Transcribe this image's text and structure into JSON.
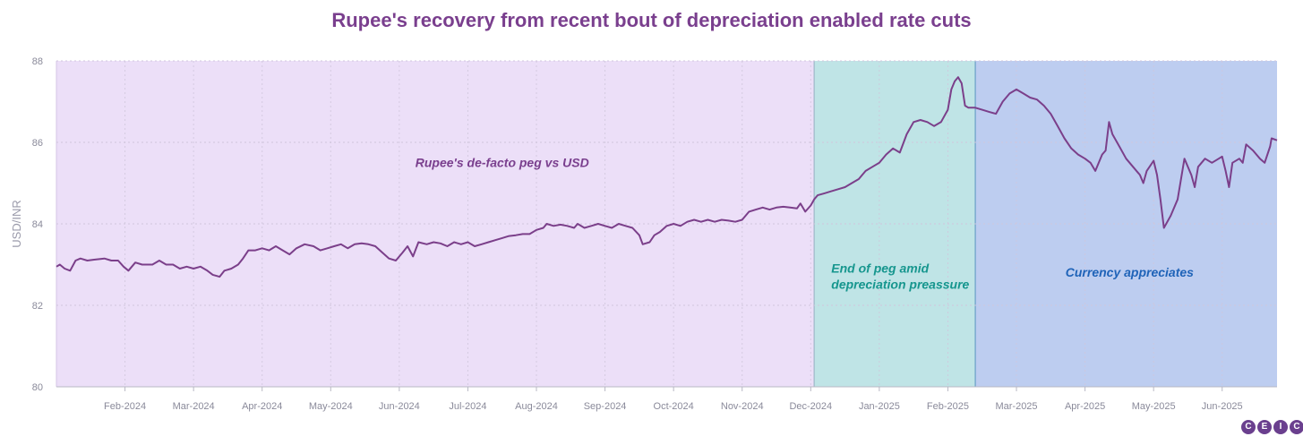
{
  "title": "Rupee's recovery from recent bout of depreciation enabled rate cuts",
  "logo": [
    "C",
    "E",
    "I",
    "C"
  ],
  "chart_data": {
    "type": "line",
    "title": "Rupee's recovery from recent bout of depreciation enabled rate cuts",
    "ylabel": "USD/INR",
    "xlabel": "",
    "ylim": [
      80,
      88
    ],
    "yticks": [
      80,
      82,
      84,
      86,
      88
    ],
    "xlim": [
      0,
      17.8
    ],
    "xticks": [
      {
        "x": 1,
        "label": "Feb-2024"
      },
      {
        "x": 2,
        "label": "Mar-2024"
      },
      {
        "x": 3,
        "label": "Apr-2024"
      },
      {
        "x": 4,
        "label": "May-2024"
      },
      {
        "x": 5,
        "label": "Jun-2024"
      },
      {
        "x": 6,
        "label": "Jul-2024"
      },
      {
        "x": 7,
        "label": "Aug-2024"
      },
      {
        "x": 8,
        "label": "Sep-2024"
      },
      {
        "x": 9,
        "label": "Oct-2024"
      },
      {
        "x": 10,
        "label": "Nov-2024"
      },
      {
        "x": 11,
        "label": "Dec-2024"
      },
      {
        "x": 12,
        "label": "Jan-2025"
      },
      {
        "x": 13,
        "label": "Feb-2025"
      },
      {
        "x": 14,
        "label": "Mar-2025"
      },
      {
        "x": 15,
        "label": "Apr-2025"
      },
      {
        "x": 16,
        "label": "May-2025"
      },
      {
        "x": 17,
        "label": "Jun-2025"
      }
    ],
    "grid": true,
    "regions": [
      {
        "from": 0,
        "to": 11.05,
        "label": "Rupee's de-facto peg vs USD",
        "color": "#ecdff8",
        "label_color": "#7a3f8e",
        "label_at": [
          6.5,
          85.4
        ]
      },
      {
        "from": 11.05,
        "to": 13.4,
        "label": "End of peg amid\ndepreciation preassure",
        "color": "#bfe4e6",
        "label_color": "#16968e",
        "label_at": [
          11.3,
          82.8
        ]
      },
      {
        "from": 13.4,
        "to": 17.8,
        "label": "Currency appreciates",
        "color": "#bdcdf0",
        "label_color": "#1f63b8",
        "label_at": [
          15.65,
          82.7
        ]
      }
    ],
    "series": [
      {
        "color": "#7b3f8a",
        "points": [
          [
            0,
            82.95
          ],
          [
            0.05,
            83.0
          ],
          [
            0.12,
            82.9
          ],
          [
            0.2,
            82.85
          ],
          [
            0.28,
            83.1
          ],
          [
            0.35,
            83.15
          ],
          [
            0.45,
            83.1
          ],
          [
            0.55,
            83.12
          ],
          [
            0.7,
            83.15
          ],
          [
            0.8,
            83.1
          ],
          [
            0.9,
            83.1
          ],
          [
            0.98,
            82.95
          ],
          [
            1.05,
            82.85
          ],
          [
            1.15,
            83.05
          ],
          [
            1.25,
            83.0
          ],
          [
            1.4,
            83.0
          ],
          [
            1.5,
            83.1
          ],
          [
            1.6,
            83.0
          ],
          [
            1.7,
            83.0
          ],
          [
            1.8,
            82.9
          ],
          [
            1.9,
            82.95
          ],
          [
            2.0,
            82.9
          ],
          [
            2.1,
            82.95
          ],
          [
            2.2,
            82.85
          ],
          [
            2.28,
            82.75
          ],
          [
            2.38,
            82.7
          ],
          [
            2.45,
            82.85
          ],
          [
            2.55,
            82.9
          ],
          [
            2.65,
            83.0
          ],
          [
            2.72,
            83.15
          ],
          [
            2.8,
            83.35
          ],
          [
            2.9,
            83.35
          ],
          [
            3.0,
            83.4
          ],
          [
            3.1,
            83.35
          ],
          [
            3.2,
            83.45
          ],
          [
            3.3,
            83.35
          ],
          [
            3.4,
            83.25
          ],
          [
            3.5,
            83.4
          ],
          [
            3.62,
            83.5
          ],
          [
            3.75,
            83.45
          ],
          [
            3.85,
            83.35
          ],
          [
            3.95,
            83.4
          ],
          [
            4.05,
            83.45
          ],
          [
            4.15,
            83.5
          ],
          [
            4.25,
            83.4
          ],
          [
            4.35,
            83.5
          ],
          [
            4.45,
            83.52
          ],
          [
            4.55,
            83.5
          ],
          [
            4.65,
            83.45
          ],
          [
            4.75,
            83.3
          ],
          [
            4.85,
            83.15
          ],
          [
            4.95,
            83.1
          ],
          [
            5.05,
            83.3
          ],
          [
            5.12,
            83.45
          ],
          [
            5.2,
            83.2
          ],
          [
            5.28,
            83.55
          ],
          [
            5.4,
            83.5
          ],
          [
            5.5,
            83.55
          ],
          [
            5.6,
            83.52
          ],
          [
            5.7,
            83.45
          ],
          [
            5.8,
            83.55
          ],
          [
            5.9,
            83.5
          ],
          [
            6.0,
            83.55
          ],
          [
            6.1,
            83.45
          ],
          [
            6.2,
            83.5
          ],
          [
            6.3,
            83.55
          ],
          [
            6.4,
            83.6
          ],
          [
            6.5,
            83.65
          ],
          [
            6.6,
            83.7
          ],
          [
            6.7,
            83.72
          ],
          [
            6.8,
            83.75
          ],
          [
            6.9,
            83.75
          ],
          [
            7.0,
            83.85
          ],
          [
            7.1,
            83.9
          ],
          [
            7.15,
            84.0
          ],
          [
            7.25,
            83.95
          ],
          [
            7.35,
            83.98
          ],
          [
            7.45,
            83.95
          ],
          [
            7.55,
            83.9
          ],
          [
            7.6,
            84.0
          ],
          [
            7.7,
            83.9
          ],
          [
            7.8,
            83.95
          ],
          [
            7.9,
            84.0
          ],
          [
            8.0,
            83.95
          ],
          [
            8.1,
            83.9
          ],
          [
            8.2,
            84.0
          ],
          [
            8.3,
            83.95
          ],
          [
            8.4,
            83.9
          ],
          [
            8.5,
            83.72
          ],
          [
            8.55,
            83.5
          ],
          [
            8.65,
            83.55
          ],
          [
            8.72,
            83.72
          ],
          [
            8.8,
            83.8
          ],
          [
            8.9,
            83.95
          ],
          [
            9.0,
            84.0
          ],
          [
            9.1,
            83.95
          ],
          [
            9.2,
            84.05
          ],
          [
            9.3,
            84.1
          ],
          [
            9.4,
            84.05
          ],
          [
            9.5,
            84.1
          ],
          [
            9.6,
            84.05
          ],
          [
            9.7,
            84.1
          ],
          [
            9.8,
            84.08
          ],
          [
            9.9,
            84.05
          ],
          [
            10.0,
            84.1
          ],
          [
            10.1,
            84.3
          ],
          [
            10.2,
            84.35
          ],
          [
            10.3,
            84.4
          ],
          [
            10.4,
            84.35
          ],
          [
            10.5,
            84.4
          ],
          [
            10.6,
            84.42
          ],
          [
            10.7,
            84.4
          ],
          [
            10.8,
            84.38
          ],
          [
            10.85,
            84.5
          ],
          [
            10.92,
            84.3
          ],
          [
            11.0,
            84.45
          ],
          [
            11.05,
            84.6
          ],
          [
            11.1,
            84.7
          ],
          [
            11.2,
            84.75
          ],
          [
            11.3,
            84.8
          ],
          [
            11.4,
            84.85
          ],
          [
            11.5,
            84.9
          ],
          [
            11.6,
            85.0
          ],
          [
            11.7,
            85.1
          ],
          [
            11.8,
            85.3
          ],
          [
            11.9,
            85.4
          ],
          [
            12.0,
            85.5
          ],
          [
            12.1,
            85.7
          ],
          [
            12.2,
            85.85
          ],
          [
            12.3,
            85.75
          ],
          [
            12.4,
            86.2
          ],
          [
            12.5,
            86.5
          ],
          [
            12.6,
            86.55
          ],
          [
            12.7,
            86.5
          ],
          [
            12.8,
            86.4
          ],
          [
            12.9,
            86.5
          ],
          [
            13.0,
            86.8
          ],
          [
            13.05,
            87.3
          ],
          [
            13.1,
            87.5
          ],
          [
            13.15,
            87.6
          ],
          [
            13.2,
            87.45
          ],
          [
            13.25,
            86.9
          ],
          [
            13.3,
            86.85
          ],
          [
            13.4,
            86.85
          ],
          [
            13.5,
            86.8
          ],
          [
            13.6,
            86.75
          ],
          [
            13.7,
            86.7
          ],
          [
            13.8,
            87.0
          ],
          [
            13.9,
            87.2
          ],
          [
            14.0,
            87.3
          ],
          [
            14.1,
            87.2
          ],
          [
            14.2,
            87.1
          ],
          [
            14.3,
            87.05
          ],
          [
            14.4,
            86.9
          ],
          [
            14.5,
            86.7
          ],
          [
            14.6,
            86.4
          ],
          [
            14.7,
            86.1
          ],
          [
            14.8,
            85.85
          ],
          [
            14.9,
            85.7
          ],
          [
            15.0,
            85.6
          ],
          [
            15.08,
            85.5
          ],
          [
            15.15,
            85.3
          ],
          [
            15.25,
            85.7
          ],
          [
            15.3,
            85.8
          ],
          [
            15.35,
            86.5
          ],
          [
            15.4,
            86.2
          ],
          [
            15.5,
            85.9
          ],
          [
            15.6,
            85.6
          ],
          [
            15.7,
            85.4
          ],
          [
            15.8,
            85.2
          ],
          [
            15.85,
            85.0
          ],
          [
            15.9,
            85.3
          ],
          [
            16.0,
            85.55
          ],
          [
            16.05,
            85.2
          ],
          [
            16.1,
            84.6
          ],
          [
            16.15,
            83.9
          ],
          [
            16.25,
            84.2
          ],
          [
            16.35,
            84.6
          ],
          [
            16.45,
            85.6
          ],
          [
            16.55,
            85.2
          ],
          [
            16.6,
            84.9
          ],
          [
            16.65,
            85.4
          ],
          [
            16.75,
            85.6
          ],
          [
            16.85,
            85.5
          ],
          [
            16.95,
            85.6
          ],
          [
            17.0,
            85.65
          ],
          [
            17.05,
            85.3
          ],
          [
            17.1,
            84.9
          ],
          [
            17.15,
            85.5
          ],
          [
            17.25,
            85.6
          ],
          [
            17.3,
            85.5
          ],
          [
            17.35,
            85.95
          ],
          [
            17.45,
            85.8
          ],
          [
            17.55,
            85.6
          ],
          [
            17.62,
            85.5
          ],
          [
            17.7,
            85.9
          ],
          [
            17.72,
            86.1
          ],
          [
            17.8,
            86.05
          ]
        ]
      }
    ]
  }
}
